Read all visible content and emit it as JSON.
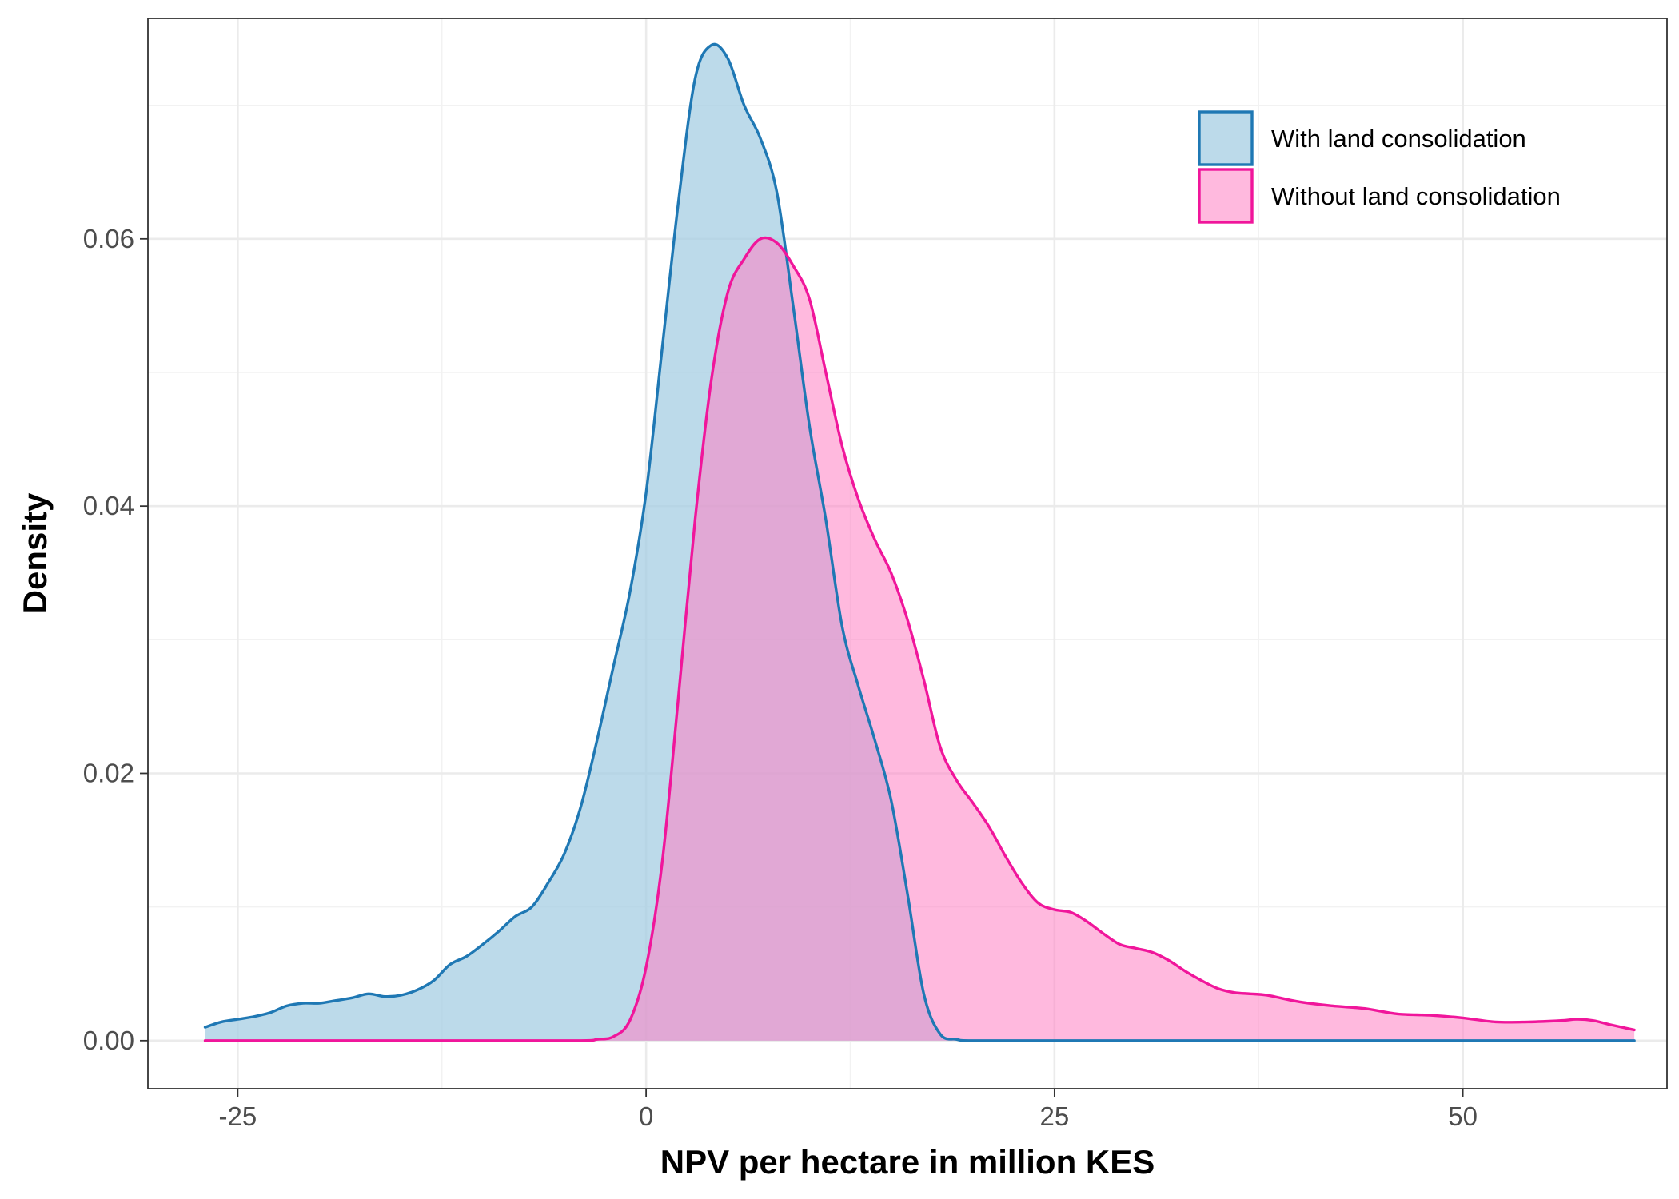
{
  "chart_data": {
    "type": "area",
    "xlabel": "NPV per hectare in million KES",
    "ylabel": "Density",
    "xlim": [
      -30.5,
      62.5
    ],
    "ylim": [
      -0.0036,
      0.0765
    ],
    "x_ticks": [
      -25,
      0,
      25,
      50
    ],
    "x_tick_labels": [
      "-25",
      "0",
      "25",
      "50"
    ],
    "y_ticks": [
      0.0,
      0.02,
      0.04,
      0.06
    ],
    "y_tick_labels": [
      "0.00",
      "0.02",
      "0.04",
      "0.06"
    ],
    "grid": true,
    "legend_position": "top-right",
    "series": [
      {
        "name": "With land consolidation",
        "line_color": "#1f78b4",
        "fill_color": "#a6cee3",
        "fill_opacity": 0.75,
        "x": [
          -27,
          -26,
          -25,
          -24,
          -23,
          -22,
          -21,
          -20,
          -19,
          -18,
          -17,
          -16,
          -15,
          -14,
          -13,
          -12,
          -11,
          -10,
          -9,
          -8,
          -7,
          -6,
          -5,
          -4,
          -3,
          -2,
          -1,
          0,
          1,
          2,
          3,
          4,
          5,
          6,
          7,
          8,
          9,
          10,
          11,
          12,
          13,
          14,
          15,
          16,
          17,
          18,
          19,
          20,
          25,
          30,
          40,
          50,
          60.5
        ],
        "y": [
          0.001,
          0.0014,
          0.0016,
          0.0018,
          0.0021,
          0.0026,
          0.0028,
          0.0028,
          0.003,
          0.0032,
          0.0035,
          0.0033,
          0.0034,
          0.0038,
          0.0045,
          0.0057,
          0.0063,
          0.0072,
          0.0082,
          0.0093,
          0.01,
          0.0118,
          0.014,
          0.0175,
          0.0225,
          0.028,
          0.0335,
          0.041,
          0.052,
          0.063,
          0.072,
          0.0745,
          0.0735,
          0.07,
          0.0675,
          0.0635,
          0.055,
          0.046,
          0.039,
          0.031,
          0.0265,
          0.0225,
          0.018,
          0.011,
          0.0035,
          0.0005,
          0.0001,
          0.0,
          0.0,
          0.0,
          0.0,
          0.0,
          0.0
        ]
      },
      {
        "name": "Without land consolidation",
        "line_color": "#f0169b",
        "fill_color": "#ff7fc3",
        "fill_opacity": 0.55,
        "x": [
          -27,
          -10,
          -4,
          -3,
          -2,
          -1,
          0,
          1,
          2,
          3,
          4,
          5,
          6,
          7,
          8,
          9,
          10,
          11,
          12,
          13,
          14,
          15,
          16,
          17,
          18,
          19,
          20,
          21,
          22,
          23,
          24,
          25,
          26,
          27,
          28,
          29,
          30,
          31,
          32,
          33,
          34,
          35,
          36,
          37,
          38,
          40,
          42,
          44,
          46,
          48,
          50,
          52,
          54,
          56,
          57,
          58,
          59,
          60.5
        ],
        "y": [
          0.0,
          0.0,
          0.0,
          0.0001,
          0.0003,
          0.0015,
          0.0055,
          0.0135,
          0.026,
          0.039,
          0.0495,
          0.056,
          0.0585,
          0.06,
          0.0597,
          0.058,
          0.0555,
          0.05,
          0.0445,
          0.0405,
          0.0375,
          0.035,
          0.0315,
          0.027,
          0.022,
          0.0195,
          0.0178,
          0.016,
          0.0138,
          0.0118,
          0.0103,
          0.0098,
          0.0096,
          0.0089,
          0.008,
          0.0072,
          0.0069,
          0.0066,
          0.006,
          0.0052,
          0.0045,
          0.0039,
          0.0036,
          0.0035,
          0.0034,
          0.0029,
          0.0026,
          0.0024,
          0.002,
          0.0019,
          0.0017,
          0.0014,
          0.0014,
          0.0015,
          0.0016,
          0.0015,
          0.0012,
          0.0008
        ]
      }
    ]
  }
}
